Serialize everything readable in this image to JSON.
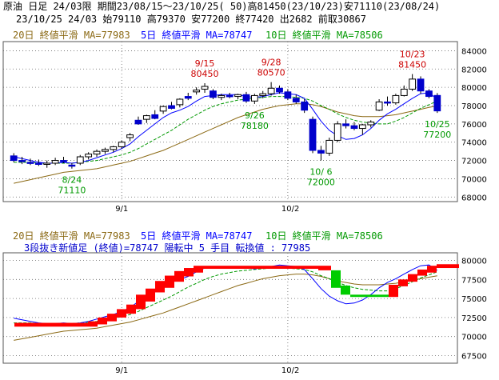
{
  "header": {
    "line1": "原油 日足 24/03限 期間23/08/15～23/10/25( 50)高81450(23/10/23)安71110(23/08/24)",
    "line2": "23/10/25 24/03 始79110 高79370 安77200 終77420 出2682 前取30867"
  },
  "colors": {
    "up": "#ffffff",
    "down": "#0000cc",
    "ma20": "#8b6914",
    "ma5": "#0000ff",
    "ma10": "#009900",
    "sanpon_up": "#ff0000",
    "sanpon_down": "#00cc00",
    "high_label": "#cc0000",
    "low_label": "#009900",
    "grid": "#555555"
  },
  "main_chart": {
    "legend": {
      "ma20": "20日 終値平滑 MA=77983",
      "ma5": "5日 終値平滑 MA=78747",
      "ma10": "10日 終値平滑 MA=78506"
    },
    "y_ticks": [
      "84000",
      "82000",
      "80000",
      "78000",
      "76000",
      "74000",
      "72000",
      "70000",
      "68000"
    ],
    "x_ticks": [
      "9/1",
      "10/2"
    ],
    "annotations": [
      {
        "date": "9/15",
        "value": "80450",
        "type": "high"
      },
      {
        "date": "9/28",
        "value": "80570",
        "type": "high"
      },
      {
        "date": "10/23",
        "value": "81450",
        "type": "high"
      },
      {
        "date": "8/24",
        "value": "71110",
        "type": "low"
      },
      {
        "date": "9/26",
        "value": "78180",
        "type": "low"
      },
      {
        "date": "10/ 6",
        "value": "72000",
        "type": "low"
      },
      {
        "date": "10/25",
        "value": "77200",
        "type": "low"
      }
    ]
  },
  "sub_chart": {
    "legend": {
      "ma20": "20日 終値平滑 MA=77983",
      "ma5": "5日 終値平滑 MA=78747",
      "ma10": "10日 終値平滑 MA=78506"
    },
    "info": "3段抜き新値足 (終値)=78747 陽転中 5 手目 転換値 : 77985",
    "y_ticks": [
      "80000",
      "77500",
      "75000",
      "72500",
      "70000",
      "67500"
    ],
    "x_ticks": [
      "9/1",
      "10/2"
    ]
  },
  "chart_data": [
    {
      "type": "candlestick",
      "title": "原油 日足 24/03限",
      "ylim": [
        67500,
        85000
      ],
      "x_ticks": {
        "9/1": 13,
        "10/2": 33
      },
      "candles": [
        {
          "o": 72500,
          "h": 72800,
          "l": 71800,
          "c": 72000
        },
        {
          "o": 72000,
          "h": 72400,
          "l": 71600,
          "c": 71900
        },
        {
          "o": 71800,
          "h": 72200,
          "l": 71500,
          "c": 71700
        },
        {
          "o": 71700,
          "h": 72100,
          "l": 71400,
          "c": 71600
        },
        {
          "o": 71600,
          "h": 72000,
          "l": 71200,
          "c": 71700
        },
        {
          "o": 71700,
          "h": 72300,
          "l": 71500,
          "c": 72000
        },
        {
          "o": 72000,
          "h": 72400,
          "l": 71700,
          "c": 71900
        },
        {
          "o": 71500,
          "h": 71700,
          "l": 71110,
          "c": 71400
        },
        {
          "o": 71700,
          "h": 72600,
          "l": 71500,
          "c": 72400
        },
        {
          "o": 72400,
          "h": 72900,
          "l": 72100,
          "c": 72700
        },
        {
          "o": 72700,
          "h": 73200,
          "l": 72400,
          "c": 73000
        },
        {
          "o": 73000,
          "h": 73400,
          "l": 72700,
          "c": 73200
        },
        {
          "o": 73200,
          "h": 73600,
          "l": 72900,
          "c": 73500
        },
        {
          "o": 73500,
          "h": 74200,
          "l": 73300,
          "c": 74000
        },
        {
          "o": 74500,
          "h": 75000,
          "l": 74100,
          "c": 74800
        },
        {
          "o": 76400,
          "h": 76800,
          "l": 75900,
          "c": 76000
        },
        {
          "o": 76500,
          "h": 77000,
          "l": 76100,
          "c": 76900
        },
        {
          "o": 77000,
          "h": 77500,
          "l": 76500,
          "c": 76600
        },
        {
          "o": 77400,
          "h": 78000,
          "l": 77100,
          "c": 77900
        },
        {
          "o": 78000,
          "h": 78400,
          "l": 77600,
          "c": 77700
        },
        {
          "o": 78100,
          "h": 78800,
          "l": 77800,
          "c": 78700
        },
        {
          "o": 79000,
          "h": 79400,
          "l": 78600,
          "c": 78800
        },
        {
          "o": 79500,
          "h": 80000,
          "l": 79200,
          "c": 79700
        },
        {
          "o": 79800,
          "h": 80450,
          "l": 79400,
          "c": 80100
        },
        {
          "o": 79600,
          "h": 79800,
          "l": 78700,
          "c": 78900
        },
        {
          "o": 78900,
          "h": 79300,
          "l": 78600,
          "c": 79100
        },
        {
          "o": 79100,
          "h": 79400,
          "l": 78800,
          "c": 79000
        },
        {
          "o": 79000,
          "h": 79300,
          "l": 78700,
          "c": 79200
        },
        {
          "o": 79200,
          "h": 79500,
          "l": 78300,
          "c": 78500
        },
        {
          "o": 78500,
          "h": 79300,
          "l": 78180,
          "c": 79100
        },
        {
          "o": 79100,
          "h": 79600,
          "l": 78800,
          "c": 79300
        },
        {
          "o": 79300,
          "h": 80570,
          "l": 79100,
          "c": 79900
        },
        {
          "o": 79900,
          "h": 80200,
          "l": 79300,
          "c": 79500
        },
        {
          "o": 79500,
          "h": 79800,
          "l": 78600,
          "c": 78800
        },
        {
          "o": 78800,
          "h": 79200,
          "l": 78200,
          "c": 78400
        },
        {
          "o": 78400,
          "h": 78700,
          "l": 77200,
          "c": 77500
        },
        {
          "o": 76500,
          "h": 76800,
          "l": 72800,
          "c": 73100
        },
        {
          "o": 73100,
          "h": 73600,
          "l": 72000,
          "c": 72800
        },
        {
          "o": 72800,
          "h": 74500,
          "l": 72500,
          "c": 74200
        },
        {
          "o": 74200,
          "h": 76300,
          "l": 74000,
          "c": 76000
        },
        {
          "o": 76000,
          "h": 76500,
          "l": 75500,
          "c": 75800
        },
        {
          "o": 75800,
          "h": 76200,
          "l": 75300,
          "c": 75500
        },
        {
          "o": 75500,
          "h": 76000,
          "l": 74800,
          "c": 75900
        },
        {
          "o": 75900,
          "h": 76400,
          "l": 75600,
          "c": 76200
        },
        {
          "o": 77500,
          "h": 78700,
          "l": 77400,
          "c": 78400
        },
        {
          "o": 78400,
          "h": 79000,
          "l": 78000,
          "c": 78300
        },
        {
          "o": 78300,
          "h": 79300,
          "l": 78100,
          "c": 79100
        },
        {
          "o": 79100,
          "h": 80200,
          "l": 79000,
          "c": 79800
        },
        {
          "o": 79800,
          "h": 81450,
          "l": 79600,
          "c": 80900
        },
        {
          "o": 80900,
          "h": 81200,
          "l": 79300,
          "c": 79600
        },
        {
          "o": 79600,
          "h": 79800,
          "l": 78800,
          "c": 79000
        },
        {
          "o": 79110,
          "h": 79370,
          "l": 77200,
          "c": 77420
        }
      ],
      "ma5": [
        72400,
        72200,
        72000,
        71800,
        71700,
        71700,
        71800,
        71700,
        71800,
        72000,
        72300,
        72600,
        72900,
        73300,
        73800,
        74600,
        75300,
        76000,
        76700,
        77200,
        77500,
        77900,
        78500,
        79000,
        79100,
        79200,
        79200,
        79200,
        79000,
        78900,
        79000,
        79200,
        79400,
        79300,
        79200,
        78800,
        77600,
        76300,
        75300,
        74700,
        74300,
        74400,
        74800,
        75500,
        76400,
        77100,
        77600,
        78200,
        78800,
        79300,
        79400,
        78700
      ],
      "ma10": [
        71800,
        71800,
        71800,
        71700,
        71700,
        71700,
        71700,
        71700,
        71800,
        71900,
        72000,
        72200,
        72400,
        72600,
        72900,
        73300,
        73800,
        74300,
        74800,
        75300,
        75900,
        76500,
        77000,
        77500,
        77900,
        78200,
        78400,
        78600,
        78700,
        78800,
        78900,
        79000,
        79000,
        79000,
        78900,
        78800,
        78500,
        78000,
        77600,
        77100,
        76700,
        76400,
        76200,
        76100,
        76000,
        76000,
        76300,
        76700,
        77200,
        77700,
        78100,
        78500
      ],
      "ma20": [
        69500,
        69700,
        69900,
        70100,
        70300,
        70500,
        70700,
        70800,
        70900,
        71000,
        71100,
        71300,
        71500,
        71700,
        71900,
        72200,
        72500,
        72800,
        73100,
        73500,
        73900,
        74300,
        74700,
        75100,
        75500,
        75900,
        76300,
        76700,
        77000,
        77300,
        77600,
        77800,
        78000,
        78100,
        78200,
        78200,
        78100,
        77900,
        77600,
        77300,
        77100,
        76900,
        76800,
        76800,
        76800,
        76900,
        77000,
        77200,
        77400,
        77600,
        77800,
        77983
      ]
    },
    {
      "type": "sanpon-shinneashi",
      "title": "3段抜き新値足 (終値)",
      "ylim": [
        66500,
        81000
      ],
      "bricks": [
        {
          "i0": 1,
          "i1": 24,
          "top": 71800,
          "bot": 71300,
          "dir": "up",
          "flat": true
        },
        {
          "i0": 24,
          "i1": 27,
          "top": 72000,
          "bot": 71300,
          "dir": "up"
        },
        {
          "i0": 27,
          "i1": 30,
          "top": 72500,
          "bot": 71600,
          "dir": "up"
        },
        {
          "i0": 30,
          "i1": 33,
          "top": 73000,
          "bot": 72000,
          "dir": "up"
        },
        {
          "i0": 33,
          "i1": 36,
          "top": 73600,
          "bot": 72500,
          "dir": "up"
        },
        {
          "i0": 36,
          "i1": 39,
          "top": 74200,
          "bot": 73000,
          "dir": "up"
        },
        {
          "i0": 39,
          "i1": 42,
          "top": 75500,
          "bot": 73600,
          "dir": "up"
        },
        {
          "i0": 42,
          "i1": 45,
          "top": 76300,
          "bot": 74600,
          "dir": "up"
        },
        {
          "i0": 45,
          "i1": 48,
          "top": 77300,
          "bot": 75800,
          "dir": "up"
        },
        {
          "i0": 48,
          "i1": 51,
          "top": 78000,
          "bot": 76400,
          "dir": "up"
        },
        {
          "i0": 51,
          "i1": 54,
          "top": 78600,
          "bot": 77200,
          "dir": "up"
        },
        {
          "i0": 54,
          "i1": 57,
          "top": 79000,
          "bot": 77900,
          "dir": "up"
        },
        {
          "i0": 57,
          "i1": 60,
          "top": 79300,
          "bot": 78400,
          "dir": "up"
        },
        {
          "i0": 60,
          "i1": 96,
          "top": 79300,
          "bot": 78900,
          "dir": "up"
        },
        {
          "i0": 96,
          "i1": 100,
          "top": 79300,
          "bot": 78700,
          "dir": "up"
        },
        {
          "i0": 100,
          "i1": 103,
          "top": 78700,
          "bot": 76400,
          "dir": "down"
        },
        {
          "i0": 103,
          "i1": 106,
          "top": 76700,
          "bot": 75500,
          "dir": "down"
        },
        {
          "i0": 106,
          "i1": 111,
          "top": 75500,
          "bot": 75200,
          "dir": "down"
        },
        {
          "i0": 111,
          "i1": 118,
          "top": 75500,
          "bot": 75200,
          "dir": "down"
        },
        {
          "i0": 118,
          "i1": 121,
          "top": 76800,
          "bot": 75200,
          "dir": "up"
        },
        {
          "i0": 121,
          "i1": 124,
          "top": 77500,
          "bot": 76600,
          "dir": "up"
        },
        {
          "i0": 124,
          "i1": 127,
          "top": 78200,
          "bot": 77200,
          "dir": "up"
        },
        {
          "i0": 127,
          "i1": 130,
          "top": 78800,
          "bot": 78000,
          "dir": "up"
        },
        {
          "i0": 130,
          "i1": 133,
          "top": 79300,
          "bot": 78400,
          "dir": "up"
        },
        {
          "i0": 133,
          "i1": 140,
          "top": 79500,
          "bot": 79000,
          "dir": "up"
        }
      ]
    }
  ]
}
